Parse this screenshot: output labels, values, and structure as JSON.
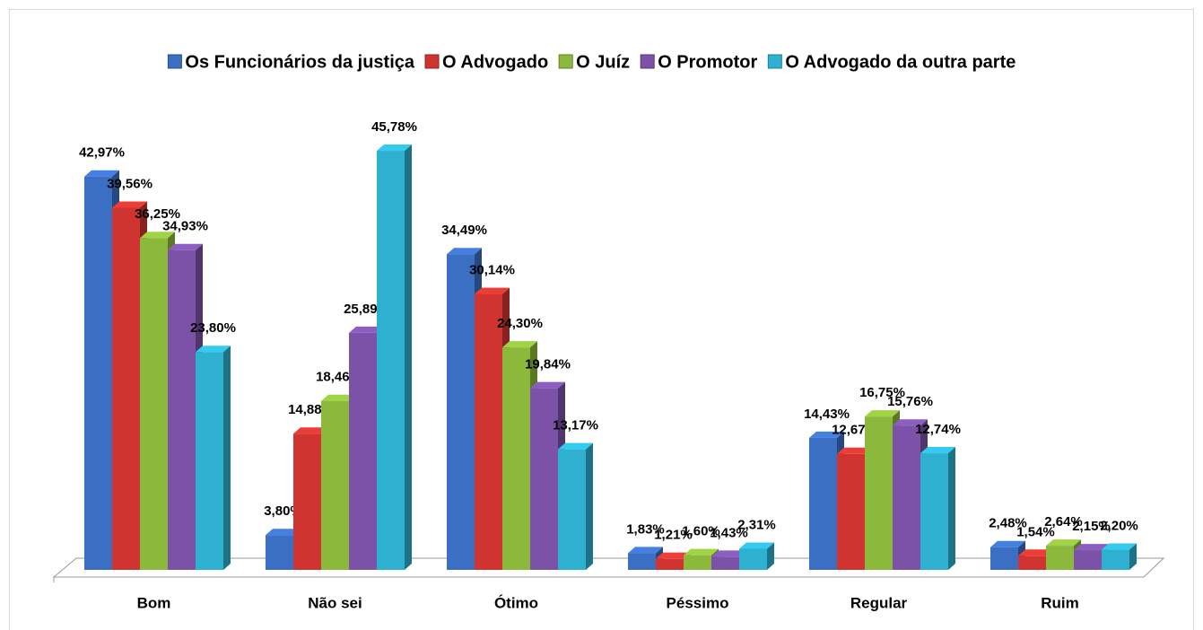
{
  "chart_data": {
    "type": "bar3d",
    "categories": [
      "Bom",
      "Não sei",
      "Ótimo",
      "Péssimo",
      "Regular",
      "Ruim"
    ],
    "series": [
      {
        "name": "Os Funcionários da justiça",
        "color": "#3a6fc4",
        "values": [
          42.97,
          3.8,
          34.49,
          1.83,
          14.43,
          2.48
        ],
        "value_labels": [
          "42,97%",
          "3,80%",
          "34,49%",
          "1,83%",
          "14,43%",
          "2,48%"
        ]
      },
      {
        "name": "O Advogado",
        "color": "#cf3430",
        "values": [
          39.56,
          14.88,
          30.14,
          1.21,
          12.67,
          1.54
        ],
        "value_labels": [
          "39,56%",
          "14,88%",
          "30,14%",
          "1,21%",
          "12,67%",
          "1,54%"
        ]
      },
      {
        "name": "O Juíz",
        "color": "#8cb83b",
        "values": [
          36.25,
          18.46,
          24.3,
          1.6,
          16.75,
          2.64
        ],
        "value_labels": [
          "36,25%",
          "18,46%",
          "24,30%",
          "1,60%",
          "16,75%",
          "2,64%"
        ]
      },
      {
        "name": "O Promotor",
        "color": "#7b52a8",
        "values": [
          34.93,
          25.89,
          19.84,
          1.43,
          15.76,
          2.15
        ],
        "value_labels": [
          "34,93%",
          "25,89%",
          "19,84%",
          "1,43%",
          "15,76%",
          "2,15%"
        ]
      },
      {
        "name": "O Advogado da outra parte",
        "color": "#2eb0d1",
        "values": [
          23.8,
          45.78,
          13.17,
          2.31,
          12.74,
          2.2
        ],
        "value_labels": [
          "23,80%",
          "45,78%",
          "13,17%",
          "2,31%",
          "12,74%",
          "2,20%"
        ]
      }
    ],
    "legend": "top"
  }
}
